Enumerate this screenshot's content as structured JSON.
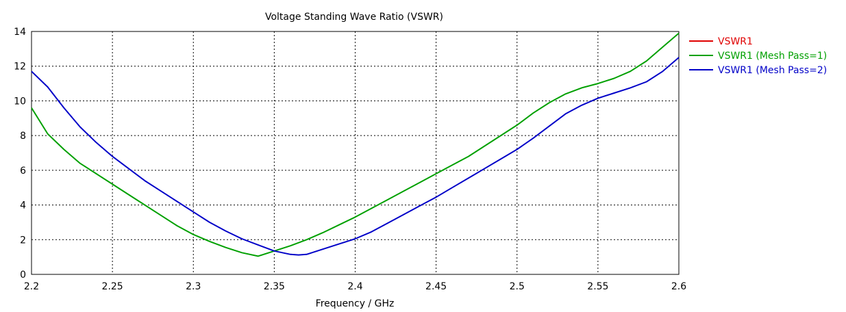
{
  "chart_data": {
    "type": "line",
    "title": "Voltage Standing Wave Ratio (VSWR)",
    "xlabel": "Frequency / GHz",
    "ylabel": "",
    "xlim": [
      2.2,
      2.6
    ],
    "ylim": [
      0,
      14
    ],
    "x_ticks": [
      "2.2",
      "2.25",
      "2.3",
      "2.35",
      "2.4",
      "2.45",
      "2.5",
      "2.55",
      "2.6"
    ],
    "y_ticks": [
      "0",
      "2",
      "4",
      "6",
      "8",
      "10",
      "12",
      "14"
    ],
    "grid": true,
    "legend_position": "right",
    "series": [
      {
        "name": "VSWR1",
        "color": "#e00000",
        "x": [],
        "y": []
      },
      {
        "name": "VSWR1 (Mesh Pass=1)",
        "color": "#00a000",
        "x": [
          2.2,
          2.21,
          2.22,
          2.23,
          2.24,
          2.25,
          2.26,
          2.27,
          2.28,
          2.29,
          2.3,
          2.31,
          2.32,
          2.33,
          2.34,
          2.35,
          2.36,
          2.37,
          2.38,
          2.39,
          2.4,
          2.41,
          2.42,
          2.43,
          2.44,
          2.45,
          2.46,
          2.47,
          2.48,
          2.49,
          2.5,
          2.51,
          2.52,
          2.53,
          2.54,
          2.55,
          2.56,
          2.57,
          2.58,
          2.59,
          2.6
        ],
        "y": [
          9.6,
          8.1,
          7.2,
          6.4,
          5.8,
          5.2,
          4.6,
          4.0,
          3.4,
          2.8,
          2.3,
          1.9,
          1.55,
          1.25,
          1.05,
          1.35,
          1.65,
          2.0,
          2.4,
          2.85,
          3.3,
          3.8,
          4.3,
          4.8,
          5.3,
          5.8,
          6.3,
          6.8,
          7.4,
          8.0,
          8.6,
          9.3,
          9.9,
          10.4,
          10.75,
          11.0,
          11.3,
          11.7,
          12.3,
          13.1,
          13.9
        ]
      },
      {
        "name": "VSWR1 (Mesh Pass=2)",
        "color": "#0000c8",
        "x": [
          2.2,
          2.21,
          2.22,
          2.23,
          2.24,
          2.25,
          2.26,
          2.27,
          2.28,
          2.29,
          2.3,
          2.31,
          2.32,
          2.33,
          2.34,
          2.35,
          2.36,
          2.365,
          2.37,
          2.38,
          2.39,
          2.4,
          2.41,
          2.42,
          2.43,
          2.44,
          2.45,
          2.46,
          2.47,
          2.48,
          2.49,
          2.5,
          2.51,
          2.52,
          2.53,
          2.54,
          2.55,
          2.56,
          2.57,
          2.58,
          2.59,
          2.6
        ],
        "y": [
          11.7,
          10.8,
          9.6,
          8.5,
          7.6,
          6.8,
          6.1,
          5.4,
          4.8,
          4.2,
          3.6,
          3.0,
          2.5,
          2.05,
          1.7,
          1.35,
          1.15,
          1.12,
          1.15,
          1.45,
          1.75,
          2.05,
          2.45,
          2.95,
          3.45,
          3.95,
          4.45,
          5.0,
          5.55,
          6.1,
          6.65,
          7.2,
          7.85,
          8.55,
          9.25,
          9.75,
          10.15,
          10.45,
          10.75,
          11.1,
          11.7,
          12.5
        ]
      }
    ]
  }
}
